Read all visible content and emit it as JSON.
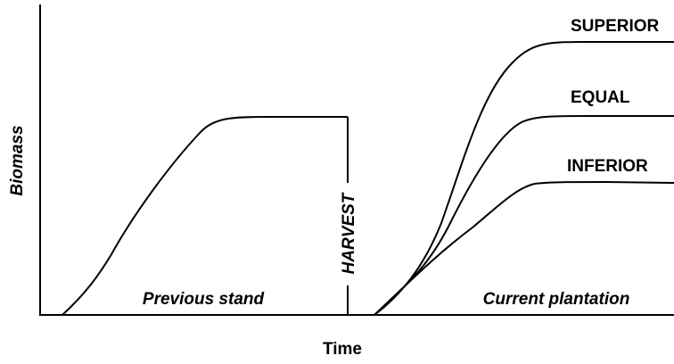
{
  "axes": {
    "y_label": "Biomass",
    "x_label": "Time"
  },
  "regions": {
    "previous": "Previous stand",
    "harvest": "HARVEST",
    "current": "Current plantation"
  },
  "curves": [
    "SUPERIOR",
    "EQUAL",
    "INFERIOR"
  ]
}
